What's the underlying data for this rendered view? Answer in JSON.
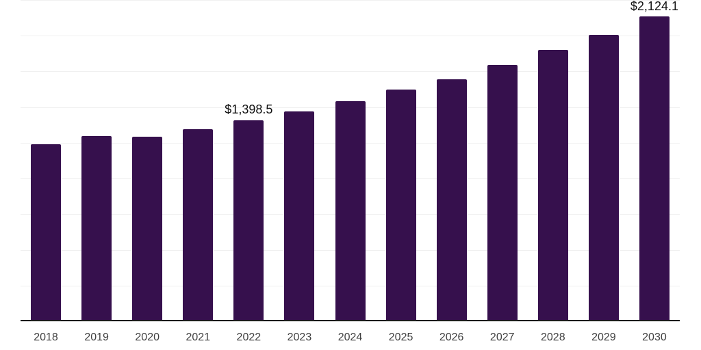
{
  "chart_data": {
    "type": "bar",
    "categories": [
      "2018",
      "2019",
      "2020",
      "2021",
      "2022",
      "2023",
      "2024",
      "2025",
      "2026",
      "2027",
      "2028",
      "2029",
      "2030"
    ],
    "values": [
      1230.0,
      1287.0,
      1282.0,
      1336.0,
      1398.5,
      1460.0,
      1532.0,
      1614.0,
      1686.0,
      1786.0,
      1891.0,
      1998.0,
      2124.1
    ],
    "value_labels": [
      "",
      "",
      "",
      "",
      "$1,398.5",
      "",
      "",
      "",
      "",
      "",
      "",
      "",
      "$2,124.1"
    ],
    "title": "",
    "xlabel": "",
    "ylabel": "",
    "ylim": [
      0,
      2250
    ],
    "gridline_step": 250,
    "grid": "horizontal",
    "legend": "none",
    "y_axis_labels_visible": false
  },
  "colors": {
    "bar": "#36104D",
    "axis_line": "#1a1a1a",
    "gridline": "#f0f0f0",
    "tick_text": "#404040",
    "value_label_text": "#111111",
    "background": "#ffffff"
  }
}
